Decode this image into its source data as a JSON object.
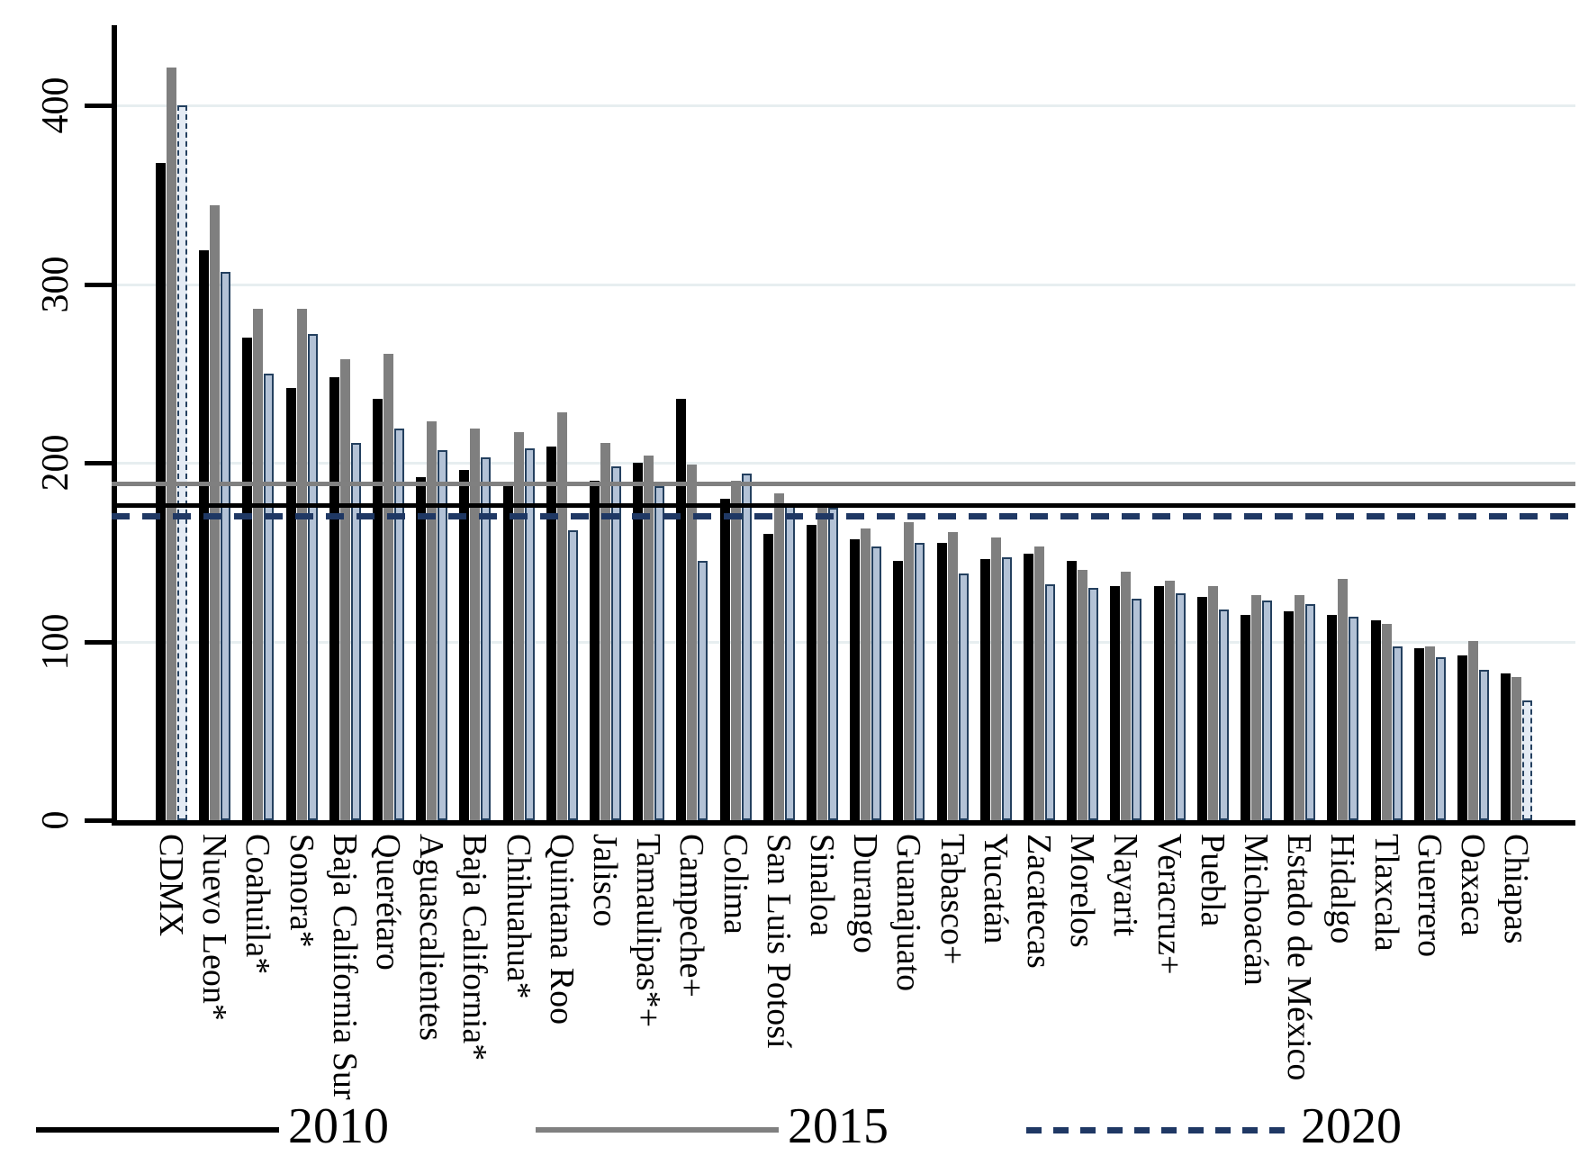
{
  "chart_data": {
    "type": "bar",
    "title": "",
    "xlabel": "",
    "ylabel": "",
    "ylim": [
      0,
      445
    ],
    "yticks": [
      0,
      100,
      200,
      300,
      400
    ],
    "grid": "horizontal light gridlines at 100,200,300,400",
    "legend_position": "bottom",
    "categories": [
      "CDMX",
      "Nuevo Leon*",
      "Coahuila*",
      "Sonora*",
      "Baja California Sur",
      "Querétaro",
      "Aguascalientes",
      "Baja California*",
      "Chihuahua*",
      "Quintana Roo",
      "Jalisco",
      "Tamaulipas*+",
      "Campeche+",
      "Colima",
      "San Luis Potosí",
      "Sinaloa",
      "Durango",
      "Guanajuato",
      "Tabasco+",
      "Yucatán",
      "Zacatecas",
      "Morelos",
      "Nayarit",
      "Veracruz+",
      "Puebla",
      "Michoacán",
      "Estado de México",
      "Hidalgo",
      "Tlaxcala",
      "Guerrero",
      "Oaxaca",
      "Chiapas"
    ],
    "series": [
      {
        "name": "2010",
        "color": "#000000",
        "values": [
          368,
          319,
          270,
          242,
          248,
          236,
          192,
          196,
          188,
          209,
          190,
          200,
          236,
          180,
          160,
          165,
          157,
          145,
          155,
          146,
          149,
          145,
          131,
          131,
          125,
          115,
          117,
          115,
          112,
          96,
          92,
          82
        ]
      },
      {
        "name": "2015",
        "color": "#7f7f7f",
        "values": [
          421,
          344,
          286,
          286,
          258,
          261,
          223,
          219,
          217,
          228,
          211,
          204,
          199,
          190,
          183,
          175,
          163,
          167,
          161,
          158,
          153,
          140,
          139,
          134,
          131,
          126,
          126,
          135,
          110,
          97,
          100,
          80
        ]
      },
      {
        "name": "2020",
        "fill": "#b3c2d6",
        "border_color": "#24405f",
        "dashed_fill": "#e4ebf4",
        "dashed_outline_categories": [
          "CDMX",
          "Chiapas"
        ],
        "values": [
          400,
          307,
          250,
          272,
          211,
          219,
          207,
          203,
          208,
          162,
          198,
          187,
          145,
          194,
          176,
          175,
          153,
          155,
          138,
          147,
          132,
          130,
          124,
          127,
          118,
          123,
          121,
          114,
          97,
          91,
          84,
          67
        ]
      }
    ],
    "reference_lines": [
      {
        "name": "2015",
        "value": 188,
        "color": "#808080",
        "style": "solid"
      },
      {
        "name": "2010",
        "value": 176,
        "color": "#000000",
        "style": "solid"
      },
      {
        "name": "2020",
        "value": 170,
        "color": "#1f3864",
        "style": "dashed"
      }
    ],
    "legend": [
      {
        "label": "2010",
        "swatch": "black-solid-line",
        "color": "#000000",
        "style": "solid"
      },
      {
        "label": "2015",
        "swatch": "gray-solid-line",
        "color": "#808080",
        "style": "solid"
      },
      {
        "label": "2020",
        "swatch": "navy-dashed-line",
        "color": "#1f3864",
        "style": "dashed"
      }
    ]
  }
}
